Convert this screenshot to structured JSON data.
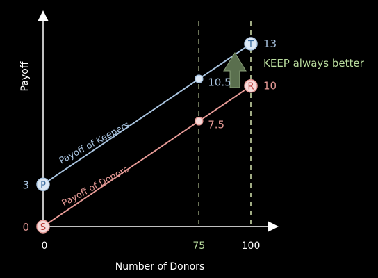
{
  "chart_data": {
    "type": "line",
    "xlabel": "Number of Donors",
    "ylabel": "Payoff",
    "xlim": [
      0,
      100
    ],
    "ylim": [
      0,
      13
    ],
    "x_ticks": [
      0,
      75,
      100
    ],
    "y_ticks": [
      0,
      3
    ],
    "series": [
      {
        "name": "Payoff of Keepers",
        "color": "#a9c4e0",
        "points": [
          [
            0,
            3
          ],
          [
            75,
            10.5
          ],
          [
            100,
            13
          ]
        ],
        "point_labels": [
          "P",
          "",
          "T"
        ],
        "value_labels": [
          "3",
          "10.5",
          "13"
        ]
      },
      {
        "name": "Payoff of Donors",
        "color": "#e69a96",
        "points": [
          [
            0,
            0
          ],
          [
            75,
            7.5
          ],
          [
            100,
            10
          ]
        ],
        "point_labels": [
          "S",
          "",
          "R"
        ],
        "value_labels": [
          "0",
          "7.5",
          "10"
        ]
      }
    ],
    "vertical_guides": [
      75,
      100
    ],
    "annotation": "KEEP always better"
  },
  "colors": {
    "axis": "#ffffff",
    "guide": "#d6e6b0",
    "keepers": "#a9c4e0",
    "donors": "#e69a96",
    "annotation": "#b9dc9e",
    "arrow": "#5a6f4e"
  }
}
